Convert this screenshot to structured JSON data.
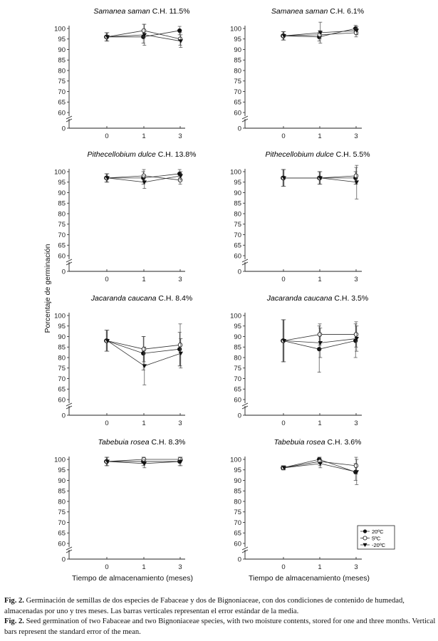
{
  "figure": {
    "ylabel": "Porcentaje de germinación",
    "xlabel": "Tiempo de almacenamiento (meses)",
    "legend": [
      {
        "label": "20ºC",
        "marker": "filled-circle"
      },
      {
        "label": "5ºC",
        "marker": "open-circle"
      },
      {
        "label": "-20ºC",
        "marker": "filled-triangle-down"
      }
    ],
    "caption_es_bold": "Fig. 2.",
    "caption_es": " Germinación de semillas de dos especies de Fabaceae y dos de Bignoniaceae, con dos condiciones de contenido de humedad, almacenadas por uno y tres meses. Las barras verticales representan el error estándar de la media.",
    "caption_en_bold": "Fig. 2.",
    "caption_en": " Seed germination of two Fabaceae and two Bignoniaceae species, with two moisture contents, stored for one and three months. Vertical bars represent the standard error of the mean."
  },
  "chart_data": [
    {
      "type": "line",
      "title_species": "Samanea saman",
      "title_suffix": " C.H. 11.5%",
      "categories": [
        "0",
        "1",
        "3"
      ],
      "y_ticks": [
        60,
        65,
        70,
        75,
        80,
        85,
        90,
        95,
        100
      ],
      "y_break_label": "0",
      "ylim": [
        60,
        102
      ],
      "series": [
        {
          "name": "20ºC",
          "values": [
            96,
            96,
            99
          ],
          "err": [
            2,
            3,
            2
          ]
        },
        {
          "name": "5ºC",
          "values": [
            96,
            99,
            95
          ],
          "err": [
            2,
            3,
            3
          ]
        },
        {
          "name": "-20ºC",
          "values": [
            96,
            97,
            94
          ],
          "err": [
            2,
            5,
            3
          ]
        }
      ]
    },
    {
      "type": "line",
      "title_species": "Samanea saman",
      "title_suffix": " C.H. 6.1%",
      "categories": [
        "0",
        "1",
        "3"
      ],
      "y_ticks": [
        60,
        65,
        70,
        75,
        80,
        85,
        90,
        95,
        100
      ],
      "y_break_label": "0",
      "ylim": [
        60,
        102
      ],
      "series": [
        {
          "name": "20ºC",
          "values": [
            96.5,
            96,
            100
          ],
          "err": [
            2,
            2,
            1.5
          ]
        },
        {
          "name": "5ºC",
          "values": [
            96.5,
            97,
            98
          ],
          "err": [
            2,
            2,
            2
          ]
        },
        {
          "name": "-20ºC",
          "values": [
            96.5,
            98,
            99
          ],
          "err": [
            2,
            5,
            2
          ]
        }
      ]
    },
    {
      "type": "line",
      "title_species": "Pithecellobium dulce",
      "title_suffix": " C.H. 13.8%",
      "categories": [
        "0",
        "1",
        "3"
      ],
      "y_ticks": [
        60,
        65,
        70,
        75,
        80,
        85,
        90,
        95,
        100
      ],
      "y_break_label": "0",
      "ylim": [
        60,
        102
      ],
      "series": [
        {
          "name": "20ºC",
          "values": [
            97,
            97,
            99
          ],
          "err": [
            2,
            3,
            2
          ]
        },
        {
          "name": "5ºC",
          "values": [
            97,
            98,
            96
          ],
          "err": [
            2,
            3,
            2
          ]
        },
        {
          "name": "-20ºC",
          "values": [
            97,
            95,
            98
          ],
          "err": [
            2,
            3,
            2
          ]
        }
      ]
    },
    {
      "type": "line",
      "title_species": "Pithecellobium dulce",
      "title_suffix": " C.H. 5.5%",
      "categories": [
        "0",
        "1",
        "3"
      ],
      "y_ticks": [
        60,
        65,
        70,
        75,
        80,
        85,
        90,
        95,
        100
      ],
      "y_break_label": "0",
      "ylim": [
        60,
        102
      ],
      "series": [
        {
          "name": "20ºC",
          "values": [
            97,
            97,
            97
          ],
          "err": [
            4,
            3,
            3
          ]
        },
        {
          "name": "5ºC",
          "values": [
            97,
            97,
            98
          ],
          "err": [
            4,
            3,
            4
          ]
        },
        {
          "name": "-20ºC",
          "values": [
            97,
            97,
            95
          ],
          "err": [
            4,
            3,
            8
          ]
        }
      ]
    },
    {
      "type": "line",
      "title_species": "Jacaranda caucana",
      "title_suffix": " C.H. 8.4%",
      "categories": [
        "0",
        "1",
        "3"
      ],
      "y_ticks": [
        60,
        65,
        70,
        75,
        80,
        85,
        90,
        95,
        100
      ],
      "y_break_label": "0",
      "ylim": [
        60,
        102
      ],
      "series": [
        {
          "name": "20ºC",
          "values": [
            88,
            82,
            84
          ],
          "err": [
            5,
            8,
            8
          ]
        },
        {
          "name": "5ºC",
          "values": [
            88,
            84,
            86
          ],
          "err": [
            5,
            6,
            10
          ]
        },
        {
          "name": "-20ºC",
          "values": [
            88,
            76,
            82
          ],
          "err": [
            5,
            9,
            7
          ]
        }
      ]
    },
    {
      "type": "line",
      "title_species": "Jacaranda caucana",
      "title_suffix": " C.H. 3.5%",
      "categories": [
        "0",
        "1",
        "3"
      ],
      "y_ticks": [
        60,
        65,
        70,
        75,
        80,
        85,
        90,
        95,
        100
      ],
      "y_break_label": "0",
      "ylim": [
        60,
        102
      ],
      "series": [
        {
          "name": "20ºC",
          "values": [
            88,
            84,
            88
          ],
          "err": [
            10,
            11,
            8
          ]
        },
        {
          "name": "5ºC",
          "values": [
            88,
            91,
            91
          ],
          "err": [
            10,
            5,
            6
          ]
        },
        {
          "name": "-20ºC",
          "values": [
            88,
            87,
            89
          ],
          "err": [
            10,
            7,
            6
          ]
        }
      ]
    },
    {
      "type": "line",
      "title_species": "Tabebuia rosea",
      "title_suffix": " C.H. 8.3%",
      "categories": [
        "0",
        "1",
        "3"
      ],
      "y_ticks": [
        60,
        65,
        70,
        75,
        80,
        85,
        90,
        95,
        100
      ],
      "y_break_label": "0",
      "ylim": [
        60,
        102
      ],
      "series": [
        {
          "name": "20ºC",
          "values": [
            99,
            99,
            99
          ],
          "err": [
            2,
            2,
            2
          ]
        },
        {
          "name": "5ºC",
          "values": [
            99,
            100,
            100
          ],
          "err": [
            2,
            1,
            1
          ]
        },
        {
          "name": "-20ºC",
          "values": [
            99,
            98,
            99
          ],
          "err": [
            2,
            2,
            2
          ]
        }
      ]
    },
    {
      "type": "line",
      "title_species": "Tabebuia rosea",
      "title_suffix": " C.H. 3.6%",
      "categories": [
        "0",
        "1",
        "3"
      ],
      "y_ticks": [
        60,
        65,
        70,
        75,
        80,
        85,
        90,
        95,
        100
      ],
      "y_break_label": "0",
      "ylim": [
        60,
        102
      ],
      "series": [
        {
          "name": "20ºC",
          "values": [
            96,
            100,
            94
          ],
          "err": [
            1,
            1,
            4
          ]
        },
        {
          "name": "5ºC",
          "values": [
            96,
            99,
            97
          ],
          "err": [
            1,
            2,
            4
          ]
        },
        {
          "name": "-20ºC",
          "values": [
            96,
            98,
            94
          ],
          "err": [
            1,
            2,
            6
          ]
        }
      ]
    }
  ]
}
